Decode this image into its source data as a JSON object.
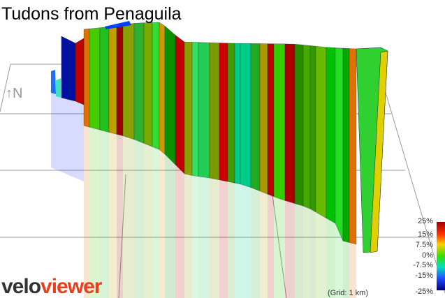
{
  "title": "Tudons from Penaguila",
  "north": "↑N",
  "legend": {
    "labels": [
      "25%",
      "15%",
      "7.5%",
      "0%",
      "-7.5%",
      "-15%",
      "-25%"
    ]
  },
  "grid_note": "(Grid: 1 km)",
  "logo": {
    "part1": "velo",
    "part2": "viewer"
  }
}
